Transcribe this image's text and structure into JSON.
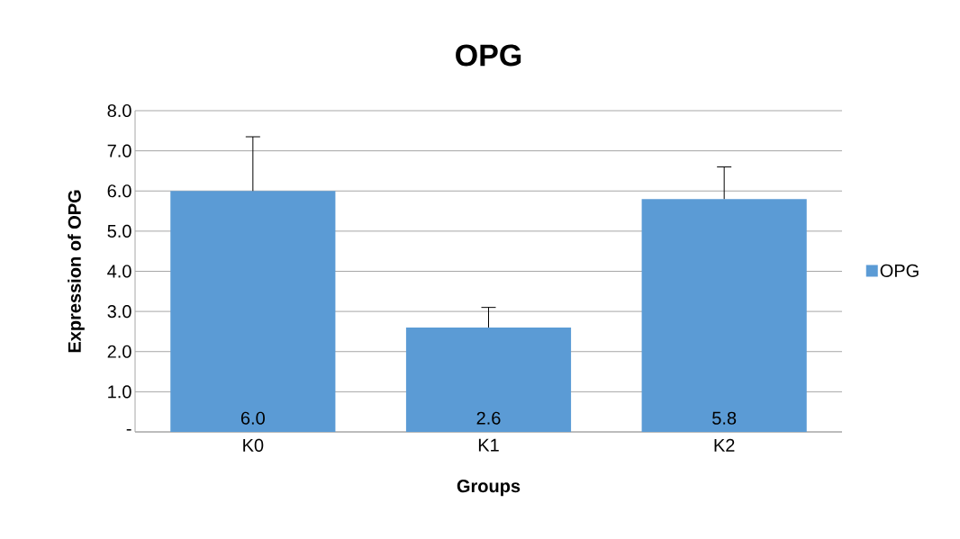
{
  "chart_data": {
    "type": "bar",
    "title": "OPG",
    "xlabel": "Groups",
    "ylabel": "Expression of OPG",
    "categories": [
      "K0",
      "K1",
      "K2"
    ],
    "series": [
      {
        "name": "OPG",
        "color": "#5b9bd5",
        "values": [
          6.0,
          2.6,
          5.8
        ],
        "errors": [
          1.35,
          0.5,
          0.8
        ],
        "value_labels": [
          "6.0",
          "2.6",
          "5.8"
        ]
      }
    ],
    "ylim": [
      0,
      8
    ],
    "yticks": [
      {
        "value": 0,
        "label": "-"
      },
      {
        "value": 1,
        "label": "1.0"
      },
      {
        "value": 2,
        "label": "2.0"
      },
      {
        "value": 3,
        "label": "3.0"
      },
      {
        "value": 4,
        "label": "4.0"
      },
      {
        "value": 5,
        "label": "5.0"
      },
      {
        "value": 6,
        "label": "6.0"
      },
      {
        "value": 7,
        "label": "7.0"
      },
      {
        "value": 8,
        "label": "8.0"
      }
    ],
    "grid": "y",
    "legend": "right"
  }
}
